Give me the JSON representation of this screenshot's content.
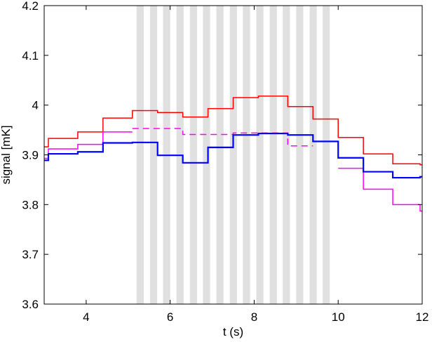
{
  "chart_data": {
    "type": "line",
    "xlabel": "t (s)",
    "ylabel": "signal [mK]",
    "xlim": [
      3,
      12
    ],
    "ylim": [
      3.6,
      4.2
    ],
    "xticks": [
      4,
      6,
      8,
      10,
      12
    ],
    "yticks": [
      3.6,
      3.7,
      3.8,
      3.9,
      4,
      4.1,
      4.2
    ],
    "xtick_labels": [
      "4",
      "6",
      "8",
      "10",
      "12"
    ],
    "ytick_labels": [
      "3.6",
      "3.7",
      "3.8",
      "3.9",
      "4",
      "4.1",
      "4.2"
    ],
    "grid": false,
    "step": true,
    "shaded_bands": {
      "color": "#e0e0e0",
      "t_start": [
        5.2,
        5.52,
        5.83,
        6.15,
        6.47,
        6.78,
        7.1,
        7.42,
        7.73,
        8.05,
        8.37,
        8.68,
        9.0,
        9.32,
        9.63
      ],
      "width": 0.17
    },
    "series": [
      {
        "color": "#ff0000",
        "style": "solid",
        "x": [
          3.0,
          3.1,
          3.8,
          4.4,
          5.1,
          5.7,
          6.3,
          6.9,
          7.5,
          8.1,
          8.8,
          9.4,
          10.0,
          10.6,
          11.3,
          11.95,
          12.0
        ],
        "y": [
          3.916,
          3.933,
          3.946,
          3.974,
          3.989,
          3.985,
          3.976,
          3.993,
          4.015,
          4.018,
          3.997,
          3.972,
          3.935,
          3.902,
          3.882,
          3.88,
          3.88
        ]
      },
      {
        "color": "#ff00ff",
        "style": "solid",
        "x": [
          3.0,
          3.1,
          3.8,
          4.4,
          5.1
        ],
        "y": [
          3.893,
          3.912,
          3.921,
          3.946,
          3.946
        ]
      },
      {
        "color": "#ff00ff",
        "style": "dashed",
        "x": [
          5.1,
          6.3,
          7.5,
          8.8,
          9.4
        ],
        "y": [
          3.953,
          3.941,
          3.944,
          3.918,
          3.918
        ]
      },
      {
        "color": "#ff00ff",
        "style": "solid",
        "x": [
          10.0,
          10.6,
          11.3,
          11.95,
          12.0
        ],
        "y": [
          3.873,
          3.831,
          3.8,
          3.787,
          3.787
        ]
      },
      {
        "color": "#0000ff",
        "style": "solid",
        "x": [
          3.0,
          3.1,
          3.8,
          4.4,
          5.1,
          5.7,
          6.3,
          6.9,
          7.5,
          8.1,
          8.8,
          9.4,
          10.0,
          10.6,
          11.3,
          11.95,
          12.0
        ],
        "y": [
          3.889,
          3.902,
          3.906,
          3.924,
          3.925,
          3.899,
          3.884,
          3.915,
          3.94,
          3.943,
          3.94,
          3.927,
          3.894,
          3.866,
          3.854,
          3.856,
          3.856
        ]
      }
    ]
  }
}
